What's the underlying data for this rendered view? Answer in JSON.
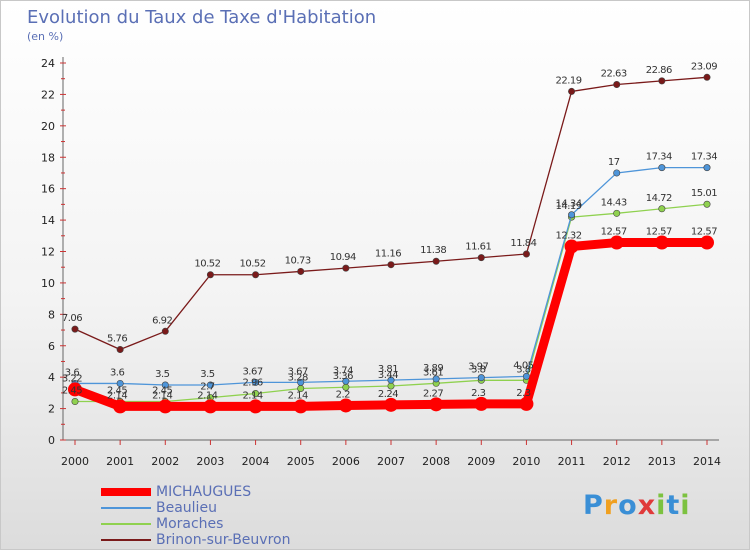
{
  "title": "Evolution du Taux de Taxe d'Habitation",
  "subtitle": "(en %)",
  "logo": {
    "letters": [
      "P",
      "r",
      "o",
      "x",
      "i",
      "t",
      "i"
    ],
    "colors": [
      "#3a8fd6",
      "#f0a020",
      "#3a8fd6",
      "#e03a3a",
      "#7cc240",
      "#3a8fd6",
      "#7cc240"
    ]
  },
  "chart_data": {
    "type": "line",
    "x": [
      "2000",
      "2001",
      "2002",
      "2003",
      "2004",
      "2005",
      "2006",
      "2007",
      "2008",
      "2009",
      "2010",
      "2011",
      "2012",
      "2013",
      "2014"
    ],
    "ylim": [
      0,
      24
    ],
    "yticks": [
      "0",
      "2",
      "4",
      "6",
      "8",
      "10",
      "12",
      "14",
      "16",
      "18",
      "20",
      "22",
      "24"
    ],
    "grid": false,
    "legend": "bottom-left",
    "series": [
      {
        "name": "MICHAUGUES",
        "color": "#ff0000",
        "values": [
          3.22,
          2.14,
          2.14,
          2.14,
          2.14,
          2.14,
          2.2,
          2.24,
          2.27,
          2.3,
          2.3,
          12.32,
          12.57,
          12.57,
          12.57
        ],
        "labels": [
          "3.22",
          "2.14",
          "2.14",
          "2.14",
          "2.14",
          "2.14",
          "2.2",
          "2.24",
          "2.27",
          "2.3",
          "2.3",
          "12.32",
          "12.57",
          "12.57",
          "12.57"
        ]
      },
      {
        "name": "Beaulieu",
        "color": "#4e95d9",
        "values": [
          3.6,
          3.6,
          3.5,
          3.5,
          3.67,
          3.67,
          3.74,
          3.81,
          3.89,
          3.97,
          4.05,
          14.34,
          17,
          17.34,
          17.34
        ],
        "labels": [
          "3.6",
          "3.6",
          "3.5",
          "3.5",
          "3.67",
          "3.67",
          "3.74",
          "3.81",
          "3.89",
          "3.97",
          "4.05",
          "14.34",
          "17",
          "17.34",
          "17.34"
        ]
      },
      {
        "name": "Moraches",
        "color": "#8fd14f",
        "values": [
          2.45,
          2.45,
          2.45,
          2.7,
          2.96,
          3.28,
          3.36,
          3.44,
          3.61,
          3.8,
          3.8,
          14.19,
          14.43,
          14.72,
          15.01
        ],
        "labels": [
          "2.45",
          "2.45",
          "2.45",
          "2.7",
          "2.96",
          "3.28",
          "3.36",
          "3.44",
          "3.61",
          "3.8",
          "3.8",
          "14.19",
          "14.43",
          "14.72",
          "15.01"
        ]
      },
      {
        "name": "Brinon-sur-Beuvron",
        "color": "#7a1a1a",
        "values": [
          7.06,
          5.76,
          6.92,
          10.52,
          10.52,
          10.73,
          10.94,
          11.16,
          11.38,
          11.61,
          11.84,
          22.19,
          22.63,
          22.86,
          23.09
        ],
        "labels": [
          "7.06",
          "5.76",
          "6.92",
          "10.52",
          "10.52",
          "10.73",
          "10.94",
          "11.16",
          "11.38",
          "11.61",
          "11.84",
          "22.19",
          "22.63",
          "22.86",
          "23.09"
        ]
      }
    ]
  }
}
